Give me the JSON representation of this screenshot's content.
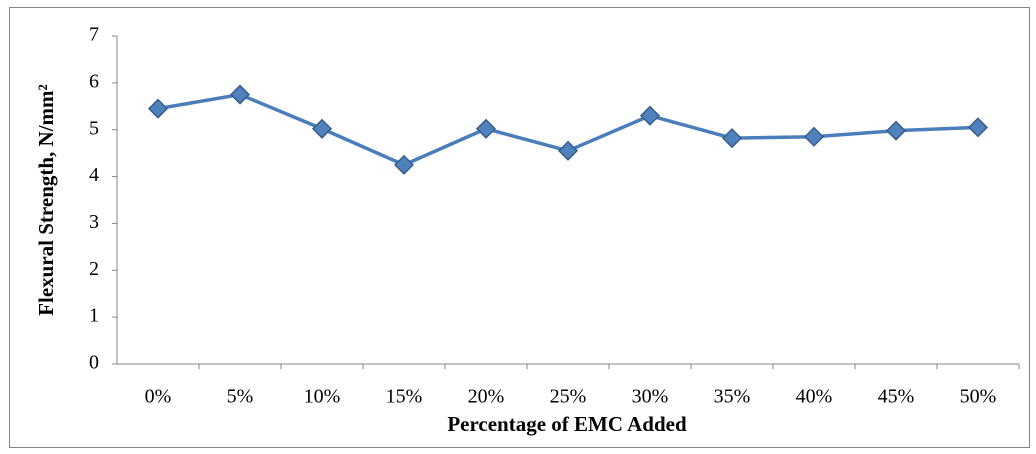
{
  "chart_data": {
    "type": "line",
    "x_label": "Percentage of EMC Added",
    "y_label": "Flexural Strength, N/mm²",
    "categories": [
      "0%",
      "5%",
      "10%",
      "15%",
      "20%",
      "25%",
      "30%",
      "35%",
      "40%",
      "45%",
      "50%"
    ],
    "series": [
      {
        "color": "#4a7ebb",
        "values": [
          5.45,
          5.75,
          5.02,
          4.25,
          5.02,
          4.55,
          5.3,
          4.82,
          4.85,
          4.98,
          5.05
        ]
      }
    ],
    "ylim": [
      0,
      7
    ],
    "yticks": [
      0,
      1,
      2,
      3,
      4,
      5,
      6,
      7
    ],
    "grid": false
  }
}
